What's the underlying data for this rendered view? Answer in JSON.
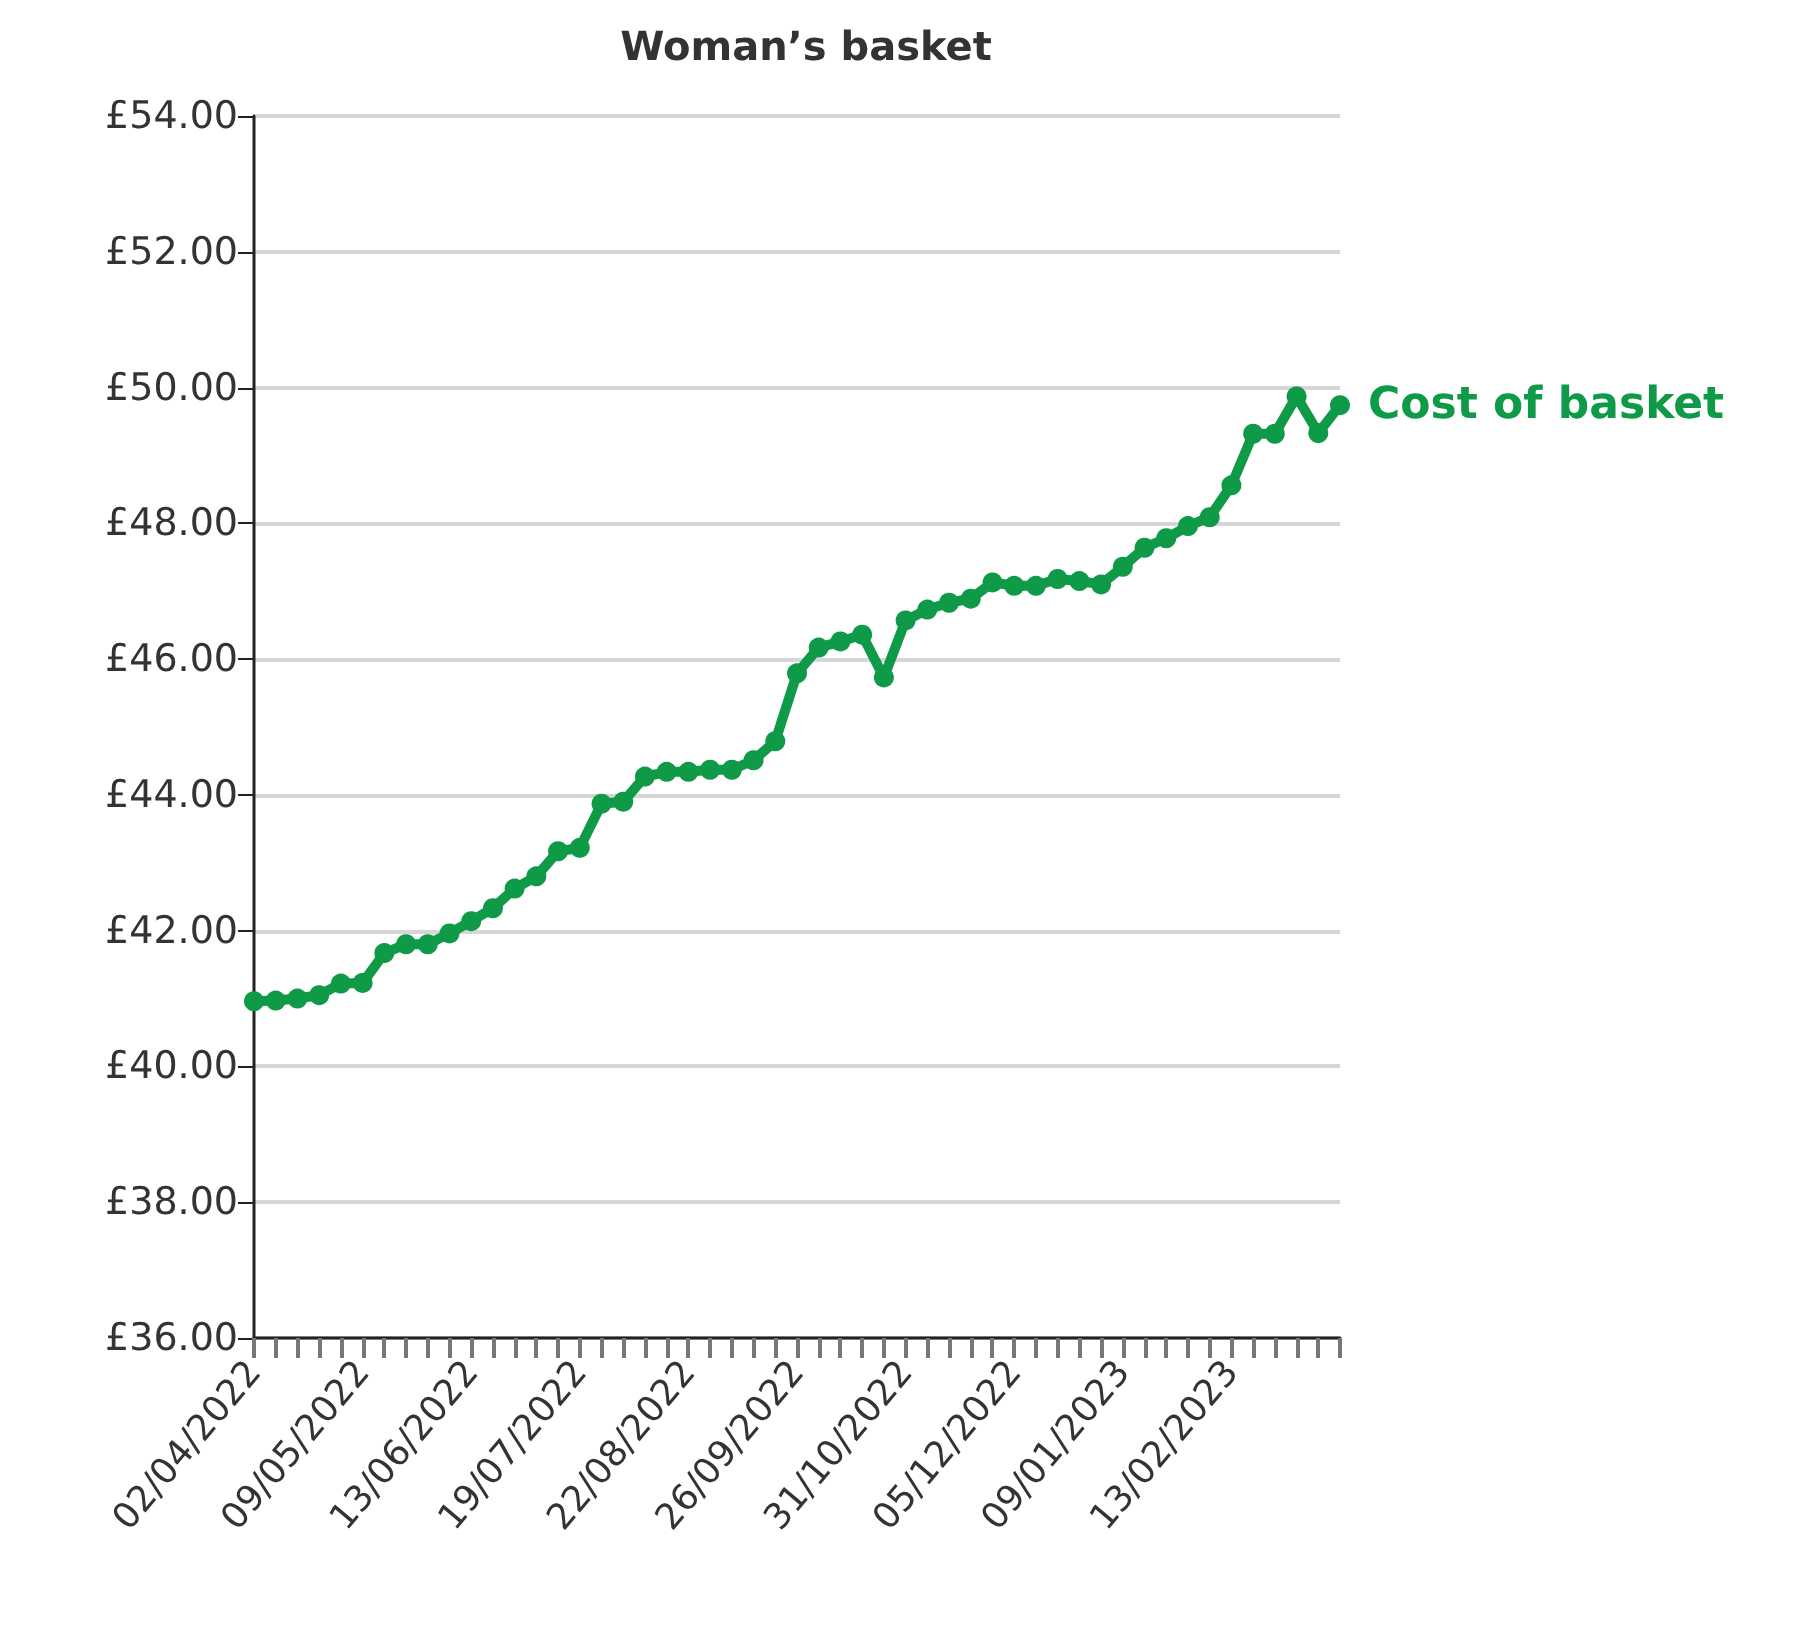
{
  "chart_data": {
    "type": "line",
    "title": "Woman’s basket",
    "categories": [
      "02/04/2022",
      null,
      null,
      null,
      null,
      "09/05/2022",
      null,
      null,
      null,
      null,
      "13/06/2022",
      null,
      null,
      null,
      null,
      "19/07/2022",
      null,
      null,
      null,
      null,
      "22/08/2022",
      null,
      null,
      null,
      null,
      "26/09/2022",
      null,
      null,
      null,
      null,
      "31/10/2022",
      null,
      null,
      null,
      null,
      "05/12/2022",
      null,
      null,
      null,
      null,
      "09/01/2023",
      null,
      null,
      null,
      null,
      "13/02/2023",
      null,
      null,
      null,
      null,
      null
    ],
    "series": [
      {
        "name": "Cost of basket",
        "color": "#0f9a48",
        "values": [
          40.96,
          40.97,
          41.0,
          41.05,
          41.22,
          41.23,
          41.67,
          41.8,
          41.8,
          41.96,
          42.14,
          42.33,
          42.62,
          42.8,
          43.17,
          43.22,
          43.87,
          43.9,
          44.27,
          44.34,
          44.34,
          44.37,
          44.37,
          44.51,
          44.79,
          45.79,
          46.17,
          46.26,
          46.36,
          45.73,
          46.57,
          46.73,
          46.83,
          46.89,
          47.13,
          47.08,
          47.08,
          47.18,
          47.15,
          47.1,
          47.36,
          47.64,
          47.78,
          47.96,
          48.09,
          48.56,
          49.32,
          49.32,
          49.87,
          49.33,
          49.74
        ]
      }
    ],
    "ylim": [
      36,
      54
    ],
    "yticks": [
      {
        "value": 36,
        "label": "£36.00"
      },
      {
        "value": 38,
        "label": "£38.00"
      },
      {
        "value": 40,
        "label": "£40.00"
      },
      {
        "value": 42,
        "label": "£42.00"
      },
      {
        "value": 44,
        "label": "£44.00"
      },
      {
        "value": 46,
        "label": "£46.00"
      },
      {
        "value": 48,
        "label": "£48.00"
      },
      {
        "value": 50,
        "label": "£50.00"
      },
      {
        "value": 52,
        "label": "£52.00"
      },
      {
        "value": 54,
        "label": "£54.00"
      }
    ],
    "grid": "y",
    "marker": "circle",
    "line_style": "solid",
    "legend": false
  }
}
